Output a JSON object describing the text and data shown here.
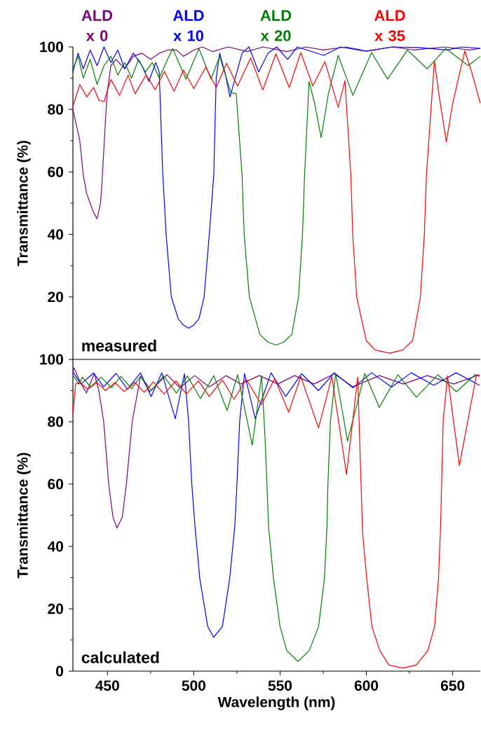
{
  "chart_data": [
    {
      "type": "line",
      "ylabel": "Transmittance (%)",
      "xlim": [
        430,
        666
      ],
      "ylim": [
        0,
        100
      ],
      "yticks": [
        20,
        40,
        60,
        80,
        100
      ],
      "tick_labels": "y",
      "annotations": [
        "measured"
      ],
      "series": [
        {
          "name": "ALD x 0",
          "color": "#800080",
          "x": [
            430,
            432,
            434,
            436,
            438,
            440,
            442,
            444,
            446,
            447,
            448,
            449,
            450,
            452,
            455,
            460,
            465,
            470,
            475,
            480,
            485,
            490,
            494,
            500,
            505,
            511,
            520,
            531,
            540,
            554,
            565,
            575,
            588,
            600,
            615,
            628,
            645,
            660,
            666
          ],
          "values": [
            80,
            75,
            70,
            59,
            53,
            50,
            47,
            45,
            50,
            58,
            68,
            78,
            86,
            94,
            96,
            93,
            97,
            98,
            96,
            98,
            99,
            99,
            97,
            99,
            100,
            98.5,
            100,
            98.5,
            100,
            98.5,
            100,
            99,
            100,
            98.7,
            100,
            99,
            100,
            99,
            99.5
          ]
        },
        {
          "name": "ALD x 10",
          "color": "#0000ff",
          "x": [
            430,
            433,
            436,
            440,
            444,
            448,
            452,
            456,
            460,
            465,
            470,
            474,
            478,
            480,
            482,
            484,
            487,
            491,
            494,
            497,
            500,
            503,
            506,
            509,
            511.6,
            513,
            515,
            518,
            521,
            524,
            528,
            532,
            537.6,
            543,
            548,
            554.4,
            560,
            575.3,
            585,
            600,
            615,
            630,
            647,
            655,
            666
          ],
          "values": [
            92,
            98,
            93,
            99,
            94,
            100,
            95,
            99,
            93,
            98,
            94,
            89,
            95,
            92,
            60,
            40,
            20,
            13,
            11,
            10,
            11,
            13,
            20,
            40,
            59,
            90,
            98,
            92,
            84,
            90,
            98,
            100,
            92,
            98,
            100,
            96,
            100,
            97.3,
            100,
            98.6,
            100,
            99.8,
            99,
            100,
            99.5
          ]
        },
        {
          "name": "ALD x 20",
          "color": "#008000",
          "x": [
            430,
            433,
            436,
            440,
            444,
            448,
            452,
            456,
            460,
            464,
            468,
            472,
            476,
            480,
            484,
            487.8,
            495.5,
            503,
            510,
            515,
            521.5,
            524.6,
            528,
            529.2,
            532.2,
            538.3,
            543,
            547.6,
            552,
            556.8,
            560.7,
            563,
            564.2,
            566.8,
            570,
            573.8,
            578,
            583.7,
            592.2,
            603,
            612.3,
            623.8,
            635.3,
            646,
            659,
            666
          ],
          "values": [
            93,
            97,
            90,
            96,
            88,
            94,
            97,
            91,
            95,
            90,
            96,
            92,
            95,
            90,
            95,
            99.5,
            89.7,
            99.5,
            89.7,
            97,
            85.4,
            85,
            59,
            40,
            20,
            8,
            5.5,
            4.6,
            5.5,
            8,
            20,
            40,
            59,
            89,
            82,
            71,
            85,
            97.3,
            84.5,
            98.2,
            89.7,
            99,
            93,
            99.5,
            94,
            97
          ]
        },
        {
          "name": "ALD x 35",
          "color": "#ff0000",
          "x": [
            430,
            434,
            438,
            442,
            445,
            448,
            452,
            457,
            462,
            466,
            472.4,
            477.7,
            483,
            488.6,
            494,
            500,
            507,
            513,
            519,
            525.4,
            533,
            540,
            547.6,
            555.3,
            562,
            569,
            576,
            583.7,
            587.6,
            591,
            592.1,
            594.4,
            599.9,
            605,
            613.6,
            621,
            626.8,
            631.3,
            633.6,
            634.8,
            639.4,
            642,
            646.3,
            650,
            657,
            661,
            666
          ],
          "values": [
            81,
            88,
            84,
            87,
            83,
            82.5,
            89.6,
            84.5,
            91,
            85,
            91,
            86.3,
            92.2,
            85.8,
            92.6,
            86.7,
            93.5,
            87,
            94.8,
            87.5,
            96.5,
            86.2,
            97.8,
            87,
            98.2,
            87.5,
            95.3,
            80.7,
            89.2,
            59,
            40,
            20,
            6,
            3,
            2,
            3,
            6,
            20,
            40,
            59,
            95.6,
            85,
            69.6,
            82,
            98.7,
            92,
            82
          ]
        }
      ]
    },
    {
      "type": "line",
      "xlabel": "Wavelength (nm)",
      "ylabel": "Transmittance (%)",
      "xlim": [
        430,
        666
      ],
      "ylim": [
        0,
        100
      ],
      "xticks": [
        450,
        500,
        550,
        600,
        650
      ],
      "yticks": [
        0,
        20,
        40,
        60,
        80,
        100
      ],
      "annotations": [
        "calculated"
      ],
      "series": [
        {
          "color": "#800080",
          "x": [
            430,
            430.6,
            434,
            437.8,
            442.4,
            445,
            447.8,
            450.8,
            453.2,
            455.5,
            458.6,
            460.9,
            464.4,
            469.2,
            474.5,
            484.5,
            492,
            500.5,
            509,
            518.7,
            527.3,
            537.9,
            548.8,
            558.4,
            569.8,
            581.4,
            592.2,
            607.6,
            621.4,
            635.3,
            650.6,
            665.6
          ],
          "values": [
            96,
            97.3,
            93,
            89.2,
            95.5,
            90,
            80.2,
            59.7,
            49.4,
            45.9,
            49.4,
            59.7,
            80.2,
            94.7,
            89.7,
            95.1,
            90.9,
            94.8,
            91.2,
            94.8,
            92.1,
            94.8,
            92.1,
            94.8,
            92.1,
            95.4,
            91.2,
            94.8,
            92.1,
            94.8,
            92.1,
            95.1
          ]
        },
        {
          "color": "#0000ff",
          "x": [
            430,
            434.7,
            442,
            447.8,
            455,
            461.6,
            469.2,
            475.3,
            481.5,
            489.3,
            494.6,
            497,
            498.9,
            500.7,
            503.5,
            508.1,
            511.5,
            516.6,
            520.8,
            523.8,
            525,
            526.6,
            529.4,
            535.6,
            544.8,
            553.3,
            562.5,
            572.3,
            581.4,
            592.2,
            603,
            614.6,
            626,
            639,
            652,
            665.6
          ],
          "values": [
            96,
            92.1,
            95.6,
            91.2,
            95.5,
            90.4,
            95.7,
            88.1,
            95.7,
            81,
            95.4,
            80.2,
            59.7,
            46.7,
            29.7,
            14.3,
            10.9,
            14.3,
            29.7,
            46.7,
            59.7,
            80.2,
            95.5,
            81,
            95.7,
            88.1,
            95.4,
            90,
            95.7,
            90.9,
            95.7,
            91.1,
            95.7,
            91.7,
            95.7,
            91.7
          ]
        },
        {
          "color": "#008000",
          "x": [
            430,
            433.5,
            435.5,
            440.2,
            446.3,
            452.4,
            457.8,
            464,
            469.2,
            475.6,
            482.5,
            490,
            496.3,
            503.9,
            511.6,
            519.3,
            525.4,
            533.9,
            539.3,
            541.3,
            543.4,
            546.2,
            550,
            553.9,
            560.4,
            566.9,
            572.3,
            575.7,
            577.2,
            577.7,
            579.2,
            582.2,
            589.1,
            599.1,
            607.5,
            618.3,
            629,
            641.4,
            652.2,
            663,
            665.6
          ],
          "values": [
            94.9,
            92.1,
            94.3,
            91.2,
            94.3,
            90.9,
            94.5,
            90.6,
            94.5,
            90,
            94.7,
            89.2,
            94.7,
            87.4,
            94.8,
            83.6,
            95.1,
            72.5,
            94.8,
            75,
            46,
            29.7,
            14.3,
            6.6,
            3.1,
            6.6,
            14.3,
            29.7,
            46.7,
            59.7,
            80.2,
            95.5,
            73.8,
            95.5,
            84.6,
            95.1,
            87.9,
            95.1,
            89.6,
            95.1,
            94.8
          ]
        },
        {
          "color": "#ff0000",
          "x": [
            430,
            431.6,
            434,
            438.6,
            443.9,
            448.9,
            454.3,
            459.7,
            465.9,
            471.2,
            476.6,
            482.8,
            489.7,
            495.8,
            502.7,
            508.9,
            516.6,
            523.4,
            530.3,
            539.2,
            546.9,
            555,
            562,
            572.3,
            580,
            588.5,
            595,
            597.8,
            600.2,
            603.2,
            607.8,
            613,
            621,
            629,
            635.6,
            639.5,
            641.8,
            643,
            644.5,
            647,
            653.9,
            663.8,
            665.6
          ],
          "values": [
            82.7,
            92.1,
            92.6,
            90.4,
            92.6,
            90,
            92.6,
            89.7,
            92.6,
            89.4,
            92.8,
            88.9,
            93.1,
            88.9,
            93.1,
            88.1,
            93.4,
            87.2,
            93.7,
            85.5,
            93.8,
            83.1,
            94.5,
            78,
            94.5,
            63.1,
            94.3,
            44.5,
            29.7,
            14.3,
            6.6,
            2,
            1,
            2,
            6.6,
            14.3,
            29.7,
            46.7,
            80.2,
            94.8,
            66,
            95.1,
            94.5
          ]
        }
      ]
    }
  ]
}
